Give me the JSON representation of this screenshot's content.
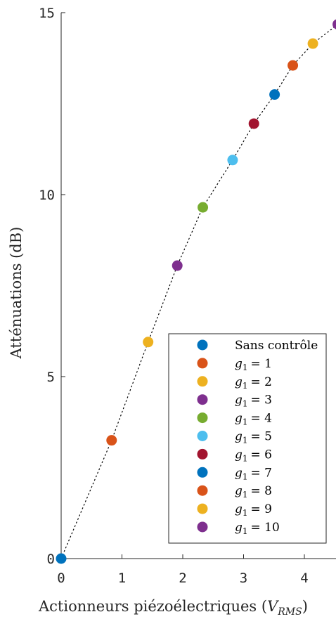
{
  "chart_data": {
    "type": "scatter",
    "xlabel": "Actionneurs piézoélectriques",
    "xlabel_unit_main": "V",
    "xlabel_unit_sub": "RMS",
    "ylabel": "Atténuations (dB)",
    "xlim": [
      0,
      4.5
    ],
    "ylim": [
      0,
      15
    ],
    "x_ticks": [
      0,
      1,
      2,
      3,
      4
    ],
    "y_ticks": [
      0,
      5,
      10,
      15
    ],
    "x_tick_labels": [
      "0",
      "1",
      "2",
      "3",
      "4"
    ],
    "y_tick_labels": [
      "0",
      "5",
      "10",
      "15"
    ],
    "grid": false,
    "legend_placement": "bottom-right",
    "trend_line": "dotted",
    "series": [
      {
        "name": "Sans contrôle",
        "legend_var": "",
        "legend_sub": "",
        "legend_value": "",
        "color": "#0072BD",
        "x": 0.0,
        "y": 0.0
      },
      {
        "name": "g1 = 1",
        "legend_var": "g",
        "legend_sub": "1",
        "legend_value": "= 1",
        "color": "#D95319",
        "x": 0.83,
        "y": 3.25
      },
      {
        "name": "g1 = 2",
        "legend_var": "g",
        "legend_sub": "1",
        "legend_value": "= 2",
        "color": "#EDB120",
        "x": 1.43,
        "y": 5.95
      },
      {
        "name": "g1 = 3",
        "legend_var": "g",
        "legend_sub": "1",
        "legend_value": "= 3",
        "color": "#7E2F8E",
        "x": 1.91,
        "y": 8.05
      },
      {
        "name": "g1 = 4",
        "legend_var": "g",
        "legend_sub": "1",
        "legend_value": "= 4",
        "color": "#77AC30",
        "x": 2.33,
        "y": 9.65
      },
      {
        "name": "g1 = 5",
        "legend_var": "g",
        "legend_sub": "1",
        "legend_value": "= 5",
        "color": "#4DBEEE",
        "x": 2.82,
        "y": 10.95
      },
      {
        "name": "g1 = 6",
        "legend_var": "g",
        "legend_sub": "1",
        "legend_value": "= 6",
        "color": "#A2142F",
        "x": 3.17,
        "y": 11.95
      },
      {
        "name": "g1 = 7",
        "legend_var": "g",
        "legend_sub": "1",
        "legend_value": "= 7",
        "color": "#0072BD",
        "x": 3.51,
        "y": 12.75
      },
      {
        "name": "g1 = 8",
        "legend_var": "g",
        "legend_sub": "1",
        "legend_value": "= 8",
        "color": "#D95319",
        "x": 3.81,
        "y": 13.55
      },
      {
        "name": "g1 = 9",
        "legend_var": "g",
        "legend_sub": "1",
        "legend_value": "= 9",
        "color": "#EDB120",
        "x": 4.14,
        "y": 14.15
      },
      {
        "name": "g1 = 10",
        "legend_var": "g",
        "legend_sub": "1",
        "legend_value": "= 10",
        "color": "#7E2F8E",
        "x": 4.55,
        "y": 14.68
      }
    ]
  }
}
